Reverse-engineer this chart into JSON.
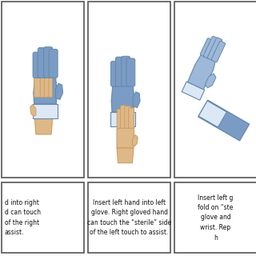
{
  "background_color": "#ffffff",
  "border_color": "#555555",
  "panel_bg": "#ffffff",
  "glove_blue": "#7a9cc4",
  "glove_blue_light": "#9db8d8",
  "glove_blue_dark": "#6688aa",
  "glove_cuff": "#dce8f5",
  "glove_cuff_dark": "#b0c8e0",
  "skin_color": "#deb887",
  "skin_dark": "#c49a60",
  "text_color": "#111111",
  "panel_texts": [
    "d into right\nd can touch\nof the right\nassist.",
    "Insert left hand into left\nglove. Right gloved hand\ncan touch the “sterile” side\nof the left touch to assist.",
    "Insert left g\nfold on “ste\nglove and\nwrist. Rep\nh"
  ]
}
